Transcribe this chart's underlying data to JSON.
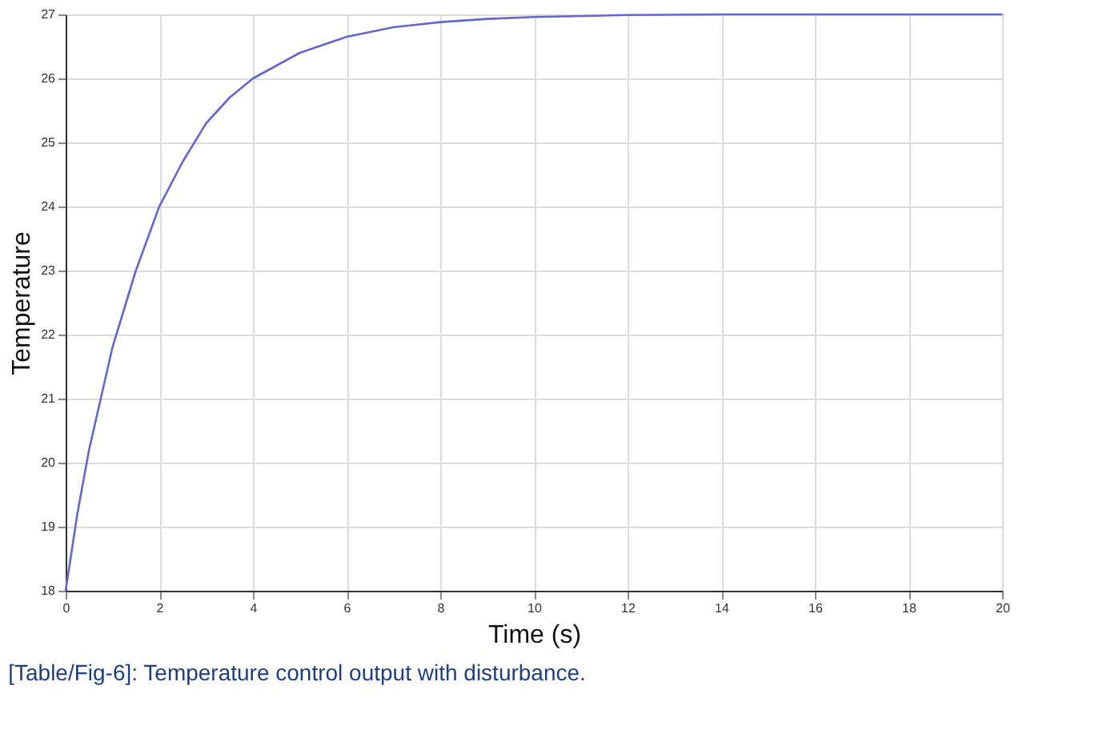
{
  "chart_data": {
    "type": "line",
    "xlabel": "Time (s)",
    "ylabel": "Temperature",
    "annotations": [
      "[Table/Fig-6]: Temperature control output with disturbance."
    ],
    "x": [
      0,
      0.25,
      0.5,
      0.75,
      1,
      1.5,
      2,
      2.5,
      3,
      3.5,
      4,
      5,
      6,
      7,
      8,
      9,
      10,
      12,
      14,
      16,
      18,
      20
    ],
    "series": [
      {
        "color": "#6666cc",
        "values": [
          18,
          19.2,
          20.2,
          21.0,
          21.8,
          23.0,
          24.0,
          24.7,
          25.3,
          25.7,
          26.0,
          26.4,
          26.65,
          26.8,
          26.88,
          26.93,
          26.96,
          26.99,
          27.0,
          27.0,
          27.0,
          27.0
        ]
      }
    ],
    "xlim": [
      0,
      20
    ],
    "xticks": [
      0,
      2,
      4,
      6,
      8,
      10,
      12,
      14,
      16,
      18,
      20
    ],
    "ylim": [
      18,
      27
    ],
    "yticks": [
      18,
      19,
      20,
      21,
      22,
      23,
      24,
      25,
      26,
      27
    ],
    "grid": true,
    "legend": false,
    "marker": "none",
    "line_style": "solid"
  }
}
